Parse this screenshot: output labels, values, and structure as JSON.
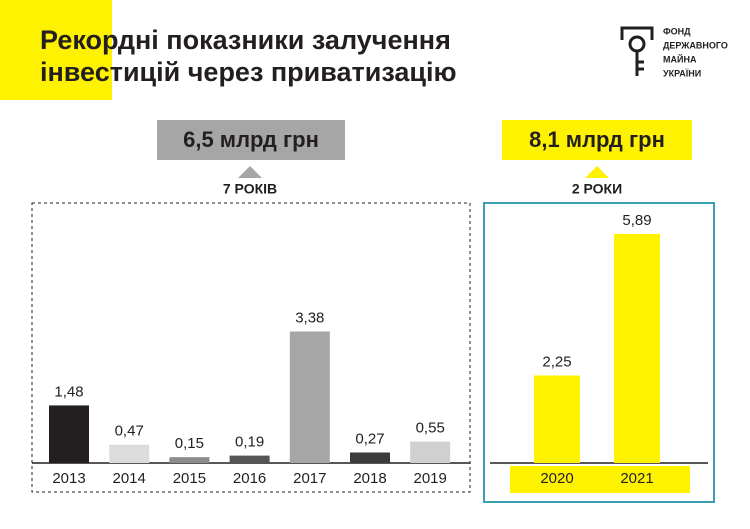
{
  "header": {
    "title": [
      "Рекордні показники залучення",
      "інвестицій через приватизацію"
    ],
    "logo": [
      "ФОНД",
      "ДЕРЖАВНОГО",
      "МАЙНА",
      "УКРАЇНИ"
    ]
  },
  "chart_data": {
    "type": "bar",
    "groups": [
      {
        "total": "6,5 млрд грн",
        "period": "7 РОКІВ",
        "categories": [
          "2013",
          "2014",
          "2015",
          "2016",
          "2017",
          "2018",
          "2019"
        ],
        "values": [
          1.48,
          0.47,
          0.15,
          0.19,
          3.38,
          0.27,
          0.55
        ],
        "value_labels": [
          "1,48",
          "0,47",
          "0,15",
          "0,19",
          "3,38",
          "0,27",
          "0,55"
        ],
        "colors": [
          "#231f20",
          "#dcdcdc",
          "#8c8c8c",
          "#555555",
          "#a6a6a6",
          "#3c3c3c",
          "#d0d0d0"
        ]
      },
      {
        "total": "8,1 млрд грн",
        "period": "2 РОКИ",
        "categories": [
          "2020",
          "2021"
        ],
        "values": [
          2.25,
          5.89
        ],
        "value_labels": [
          "2,25",
          "5,89"
        ],
        "colors": [
          "#fff200",
          "#fff200"
        ]
      }
    ]
  }
}
